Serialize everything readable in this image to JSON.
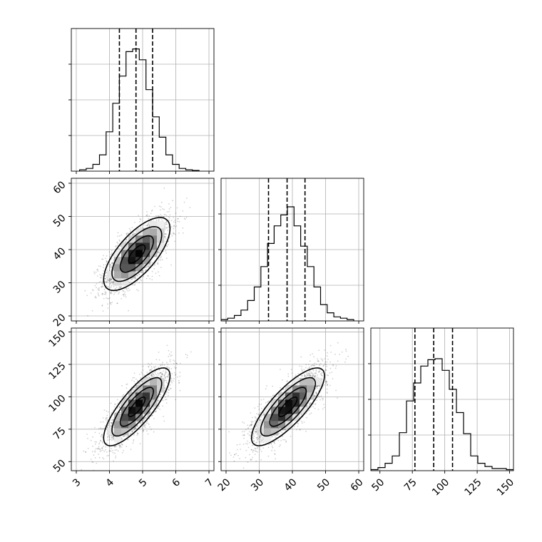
{
  "chart_data": {
    "type": "corner",
    "title": "",
    "grid": true,
    "parameters": [
      {
        "name": "",
        "median": 4.8,
        "q16": 4.3,
        "q84": 5.3,
        "sd": 0.5,
        "range": [
          2.85,
          7.15
        ],
        "ticks": [
          3,
          4,
          5,
          6,
          7
        ],
        "hist_ymax": 1.05
      },
      {
        "name": "",
        "median": 38.4,
        "q16": 32.8,
        "q84": 43.8,
        "sd": 5.5,
        "range": [
          18.5,
          61.5
        ],
        "ticks": [
          20,
          30,
          40,
          50,
          60
        ],
        "hist_ymax": 1.05
      },
      {
        "name": "",
        "median": 91.5,
        "q16": 77.0,
        "q84": 106.0,
        "sd": 15.0,
        "range": [
          43,
          153
        ],
        "ticks": [
          50,
          75,
          100,
          125,
          150
        ],
        "hist_ymax": 1.35
      }
    ],
    "correlations": [
      {
        "pair": [
          1,
          0
        ],
        "rho": 0.7
      },
      {
        "pair": [
          2,
          0
        ],
        "rho": 0.8
      },
      {
        "pair": [
          2,
          1
        ],
        "rho": 0.8
      }
    ],
    "histograms": [
      {
        "param": 0,
        "bin_edges": [
          3.1,
          3.3,
          3.5,
          3.7,
          3.9,
          4.1,
          4.3,
          4.5,
          4.7,
          4.9,
          5.1,
          5.3,
          5.5,
          5.7,
          5.9,
          6.1,
          6.3,
          6.5,
          6.7
        ],
        "counts": [
          0.01,
          0.02,
          0.05,
          0.12,
          0.29,
          0.5,
          0.7,
          0.88,
          0.9,
          0.82,
          0.6,
          0.4,
          0.25,
          0.12,
          0.05,
          0.02,
          0.01,
          0.005
        ]
      },
      {
        "param": 1,
        "bin_edges": [
          18.5,
          20.5,
          22.5,
          24.5,
          26.5,
          28.5,
          30.5,
          32.5,
          34.5,
          36.5,
          38.5,
          40.5,
          42.5,
          44.5,
          46.5,
          48.5,
          50.5,
          52.5,
          54.5,
          56.5,
          58.5
        ],
        "counts": [
          0.01,
          0.02,
          0.04,
          0.08,
          0.15,
          0.25,
          0.4,
          0.57,
          0.7,
          0.78,
          0.84,
          0.7,
          0.55,
          0.4,
          0.25,
          0.12,
          0.06,
          0.03,
          0.02,
          0.01
        ]
      },
      {
        "param": 2,
        "bin_edges": [
          43,
          48.5,
          54,
          59.5,
          65,
          70.5,
          76,
          81.5,
          87,
          92.5,
          98,
          103.5,
          109,
          114.5,
          120,
          125.5,
          131,
          136.5,
          142,
          147.5,
          153
        ],
        "counts": [
          0.01,
          0.03,
          0.07,
          0.14,
          0.36,
          0.66,
          0.83,
          0.99,
          1.05,
          1.06,
          0.95,
          0.77,
          0.55,
          0.35,
          0.14,
          0.07,
          0.04,
          0.02,
          0.02,
          0.01
        ]
      }
    ]
  }
}
